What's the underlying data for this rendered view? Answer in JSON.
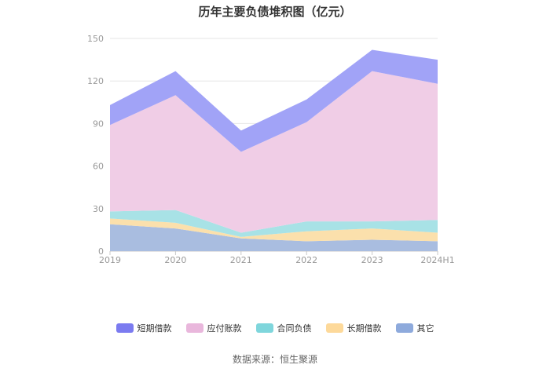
{
  "chart_data": {
    "type": "area",
    "stacked": true,
    "title": "历年主要负债堆积图（亿元）",
    "xlabel": "",
    "ylabel": "",
    "categories": [
      "2019",
      "2020",
      "2021",
      "2022",
      "2023",
      "2024H1"
    ],
    "ylim": [
      0,
      150
    ],
    "yticks": [
      0,
      30,
      60,
      90,
      120,
      150
    ],
    "grid": true,
    "legend_position": "bottom",
    "series": [
      {
        "name": "其它",
        "color": "#a9bde0",
        "values": [
          19,
          16,
          9,
          7,
          8,
          7
        ]
      },
      {
        "name": "长期借款",
        "color": "#fbe0ac",
        "values": [
          4,
          4,
          1,
          7,
          8,
          6
        ]
      },
      {
        "name": "合同负债",
        "color": "#a8e2e6",
        "values": [
          5,
          9,
          3,
          7,
          5,
          9
        ]
      },
      {
        "name": "应付账款",
        "color": "#f0cde6",
        "values": [
          61,
          81,
          57,
          70,
          106,
          96
        ]
      },
      {
        "name": "短期借款",
        "color": "#a1a3f7",
        "values": [
          14,
          17,
          15,
          16,
          15,
          17
        ]
      }
    ],
    "legend": [
      {
        "name": "短期借款",
        "color": "#7b7bf0"
      },
      {
        "name": "应付账款",
        "color": "#e9b7dc"
      },
      {
        "name": "合同负债",
        "color": "#7fd6dc"
      },
      {
        "name": "长期借款",
        "color": "#fdd99a"
      },
      {
        "name": "其它",
        "color": "#8eaadc"
      }
    ]
  },
  "source_text": "数据来源：恒生聚源"
}
